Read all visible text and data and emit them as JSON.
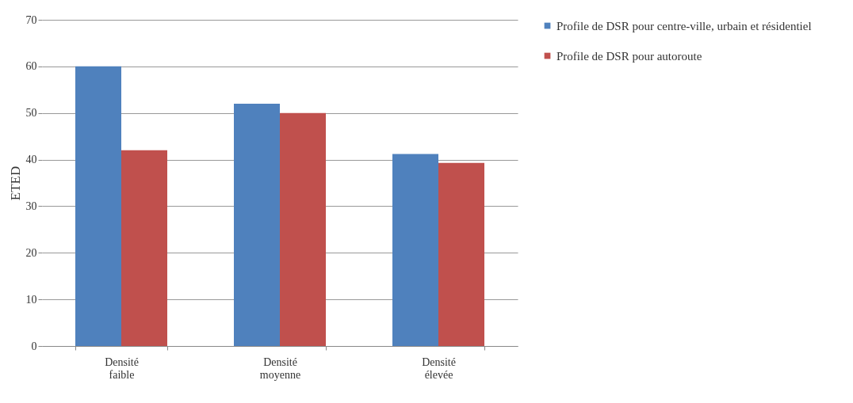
{
  "chart_data": {
    "type": "bar",
    "ylabel": "ETED",
    "categories": [
      "Densité faible",
      "Densité moyenne",
      "Densité élevée"
    ],
    "series": [
      {
        "name": "Profile de DSR pour centre-ville, urbain et résidentiel",
        "color": "#4f81bd",
        "values": [
          60,
          52,
          41.2
        ]
      },
      {
        "name": "Profile de DSR pour autoroute",
        "color": "#c0504d",
        "values": [
          42,
          50,
          39.3
        ]
      }
    ],
    "ylim": [
      0,
      70
    ],
    "yticks": [
      0,
      10,
      20,
      30,
      40,
      50,
      60,
      70
    ],
    "grid": "y",
    "legend": "right"
  }
}
